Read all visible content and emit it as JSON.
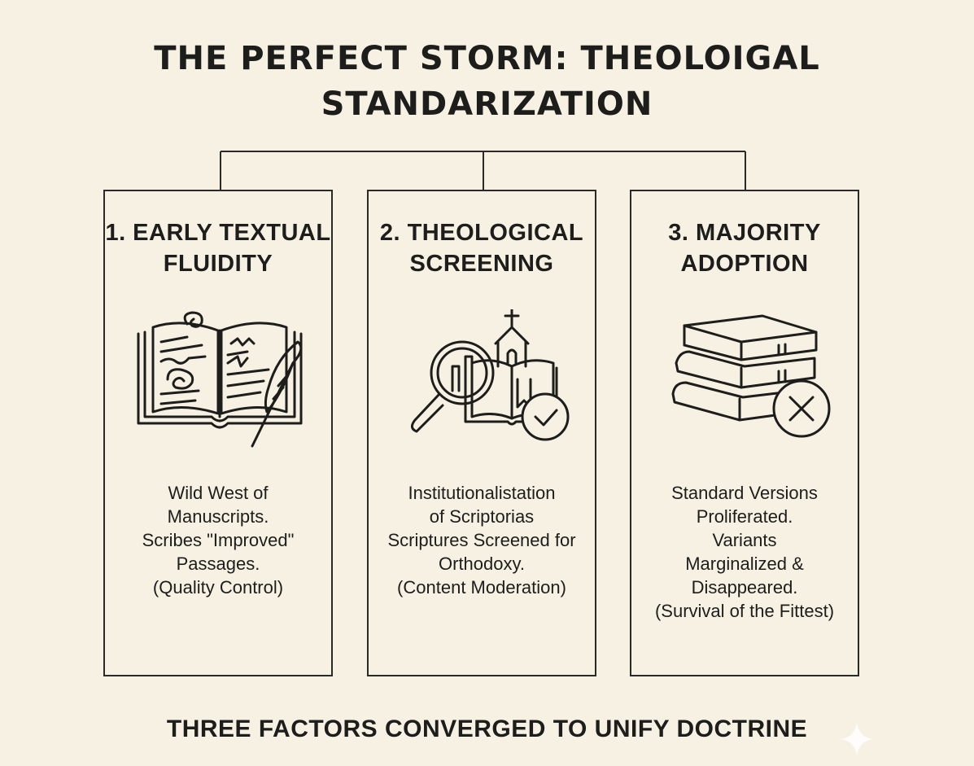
{
  "title": {
    "line1": "THE PERFECT STORM: THEOLOIGAL",
    "line2": "STANDARIZATION"
  },
  "panels": [
    {
      "title_line1": "1. EARLY TEXTUAL",
      "title_line2": "FLUIDITY",
      "icon": "open-book-quill-icon",
      "desc": [
        "Wild West of",
        "Manuscripts.",
        "Scribes \"Improved\"",
        "Passages.",
        "(Quality Control)"
      ]
    },
    {
      "title_line1": "2. THEOLOGICAL",
      "title_line2": "SCREENING",
      "icon": "magnifier-church-check-icon",
      "desc": [
        "Institutionalistation",
        "of Scriptorias",
        "Scriptures Screened for",
        "Orthodoxy.",
        "(Content Moderation)"
      ]
    },
    {
      "title_line1": "3. MAJORITY",
      "title_line2": "ADOPTION",
      "icon": "book-stack-x-icon",
      "desc": [
        "Standard Versions",
        "Proliferated.",
        "Variants",
        "Marginalized &",
        "Disappeared.",
        "(Survival of the Fittest)"
      ]
    }
  ],
  "footer": "THREE FACTORS CONVERGED TO UNIFY DOCTRINE",
  "colors": {
    "background": "#f6f1e3",
    "ink": "#1d1d1b",
    "sparkle": "#ffffff"
  }
}
